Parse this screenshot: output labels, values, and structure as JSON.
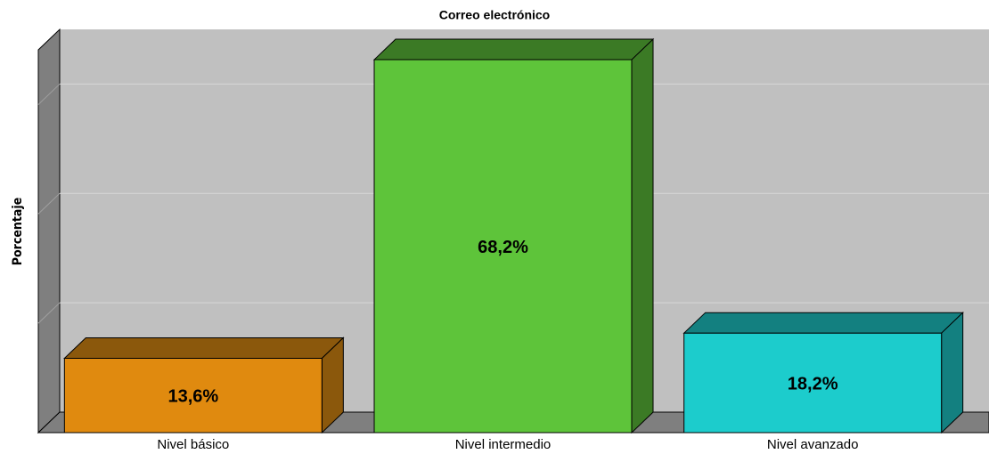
{
  "chart_data": {
    "type": "bar3d",
    "title": "Correo electrónico",
    "ylabel": "Porcentaje",
    "categories": [
      "Nivel básico",
      "Nivel intermedio",
      "Nivel avanzado"
    ],
    "values": [
      13.6,
      68.2,
      18.2
    ],
    "value_labels": [
      "13,6%",
      "68,2%",
      "18,2%"
    ],
    "colors": [
      "#e08a0f",
      "#5ec43a",
      "#1ccccc"
    ],
    "shade_colors": [
      "#8b580c",
      "#3b7a25",
      "#138080"
    ],
    "ylim": [
      0,
      70
    ],
    "yticks": [
      0,
      20,
      40,
      60
    ],
    "grid": true
  }
}
